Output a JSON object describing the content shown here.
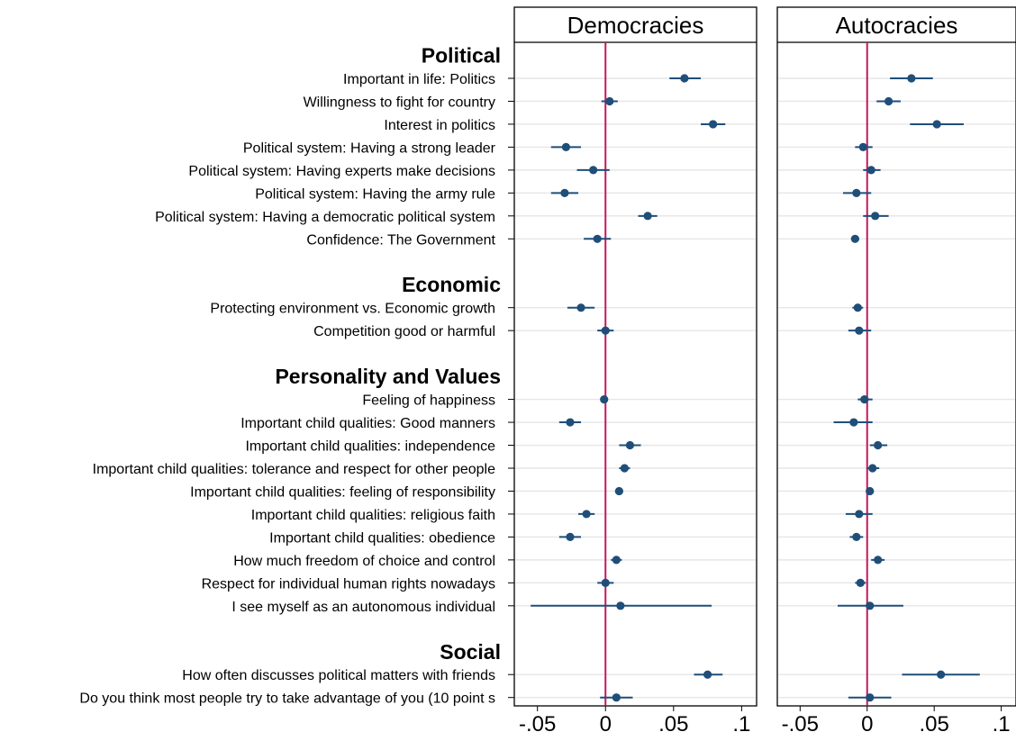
{
  "chart_data": {
    "type": "scatter",
    "style": "coefficient plot with confidence intervals",
    "panels": [
      "Democracies",
      "Autocracies"
    ],
    "x_ticks": [
      {
        "value": -0.05,
        "label": "-.05"
      },
      {
        "value": 0,
        "label": "0"
      },
      {
        "value": 0.05,
        "label": ".05"
      },
      {
        "value": 0.1,
        "label": ".1"
      }
    ],
    "xlim": [
      -0.067,
      0.111
    ],
    "reference_line": {
      "x": 0,
      "color": "#c2185b"
    },
    "marker_color": "#1f4e79",
    "grid": "horizontal",
    "groups": [
      {
        "label": "Political",
        "items": [
          {
            "label": "Important in life: Politics",
            "democracies": {
              "est": 0.058,
              "lo": 0.047,
              "hi": 0.07
            },
            "autocracies": {
              "est": 0.033,
              "lo": 0.017,
              "hi": 0.049
            }
          },
          {
            "label": "Willingness to fight for country",
            "democracies": {
              "est": 0.003,
              "lo": -0.003,
              "hi": 0.009
            },
            "autocracies": {
              "est": 0.016,
              "lo": 0.007,
              "hi": 0.025
            }
          },
          {
            "label": "Interest in politics",
            "democracies": {
              "est": 0.079,
              "lo": 0.07,
              "hi": 0.088
            },
            "autocracies": {
              "est": 0.052,
              "lo": 0.032,
              "hi": 0.072
            }
          },
          {
            "label": "Political system: Having a strong leader",
            "democracies": {
              "est": -0.029,
              "lo": -0.04,
              "hi": -0.018
            },
            "autocracies": {
              "est": -0.003,
              "lo": -0.009,
              "hi": 0.004
            }
          },
          {
            "label": "Political system: Having experts make decisions",
            "democracies": {
              "est": -0.009,
              "lo": -0.021,
              "hi": 0.003
            },
            "autocracies": {
              "est": 0.003,
              "lo": -0.003,
              "hi": 0.01
            }
          },
          {
            "label": "Political system: Having the army rule",
            "democracies": {
              "est": -0.03,
              "lo": -0.04,
              "hi": -0.02
            },
            "autocracies": {
              "est": -0.008,
              "lo": -0.018,
              "hi": 0.003
            }
          },
          {
            "label": "Political system: Having a democratic political system",
            "democracies": {
              "est": 0.031,
              "lo": 0.024,
              "hi": 0.038
            },
            "autocracies": {
              "est": 0.006,
              "lo": -0.003,
              "hi": 0.016
            }
          },
          {
            "label": "Confidence: The Government",
            "democracies": {
              "est": -0.006,
              "lo": -0.016,
              "hi": 0.004
            },
            "autocracies": {
              "est": -0.009,
              "lo": -0.012,
              "hi": -0.006
            }
          }
        ]
      },
      {
        "label": "Economic",
        "items": [
          {
            "label": "Protecting environment vs. Economic growth",
            "democracies": {
              "est": -0.018,
              "lo": -0.028,
              "hi": -0.008
            },
            "autocracies": {
              "est": -0.007,
              "lo": -0.011,
              "hi": -0.003
            }
          },
          {
            "label": "Competition good or harmful",
            "democracies": {
              "est": 0.0,
              "lo": -0.006,
              "hi": 0.006
            },
            "autocracies": {
              "est": -0.006,
              "lo": -0.014,
              "hi": 0.003
            }
          }
        ]
      },
      {
        "label": "Personality and Values",
        "items": [
          {
            "label": "Feeling of happiness",
            "democracies": {
              "est": -0.001,
              "lo": -0.003,
              "hi": 0.001
            },
            "autocracies": {
              "est": -0.002,
              "lo": -0.007,
              "hi": 0.004
            }
          },
          {
            "label": "Important child qualities: Good manners",
            "democracies": {
              "est": -0.026,
              "lo": -0.034,
              "hi": -0.018
            },
            "autocracies": {
              "est": -0.01,
              "lo": -0.025,
              "hi": 0.004
            }
          },
          {
            "label": "Important child qualities: independence",
            "democracies": {
              "est": 0.018,
              "lo": 0.01,
              "hi": 0.026
            },
            "autocracies": {
              "est": 0.008,
              "lo": 0.002,
              "hi": 0.015
            }
          },
          {
            "label": "Important child qualities: tolerance and respect for other people",
            "democracies": {
              "est": 0.014,
              "lo": 0.01,
              "hi": 0.018
            },
            "autocracies": {
              "est": 0.004,
              "lo": 0.0,
              "hi": 0.009
            }
          },
          {
            "label": "Important child qualities: feeling of responsibility",
            "democracies": {
              "est": 0.01,
              "lo": 0.007,
              "hi": 0.013
            },
            "autocracies": {
              "est": 0.002,
              "lo": -0.001,
              "hi": 0.005
            }
          },
          {
            "label": "Important child qualities: religious faith",
            "democracies": {
              "est": -0.014,
              "lo": -0.02,
              "hi": -0.008
            },
            "autocracies": {
              "est": -0.006,
              "lo": -0.016,
              "hi": 0.004
            }
          },
          {
            "label": "Important child qualities: obedience",
            "democracies": {
              "est": -0.026,
              "lo": -0.034,
              "hi": -0.018
            },
            "autocracies": {
              "est": -0.008,
              "lo": -0.013,
              "hi": -0.003
            }
          },
          {
            "label": "How much freedom of choice and control",
            "democracies": {
              "est": 0.008,
              "lo": 0.004,
              "hi": 0.012
            },
            "autocracies": {
              "est": 0.008,
              "lo": 0.003,
              "hi": 0.013
            }
          },
          {
            "label": "Respect for individual human rights nowadays",
            "democracies": {
              "est": 0.0,
              "lo": -0.006,
              "hi": 0.006
            },
            "autocracies": {
              "est": -0.005,
              "lo": -0.009,
              "hi": -0.001
            }
          },
          {
            "label": "I see myself as an autonomous individual",
            "democracies": {
              "est": 0.011,
              "lo": -0.055,
              "hi": 0.078
            },
            "autocracies": {
              "est": 0.002,
              "lo": -0.022,
              "hi": 0.027
            }
          }
        ]
      },
      {
        "label": "Social",
        "items": [
          {
            "label": "How often discusses political matters with friends",
            "democracies": {
              "est": 0.075,
              "lo": 0.065,
              "hi": 0.086
            },
            "autocracies": {
              "est": 0.055,
              "lo": 0.026,
              "hi": 0.084
            }
          },
          {
            "label": "Do you think most people try to take advantage of you (10 point s",
            "democracies": {
              "est": 0.008,
              "lo": -0.004,
              "hi": 0.02
            },
            "autocracies": {
              "est": 0.002,
              "lo": -0.014,
              "hi": 0.018
            }
          }
        ]
      }
    ]
  }
}
